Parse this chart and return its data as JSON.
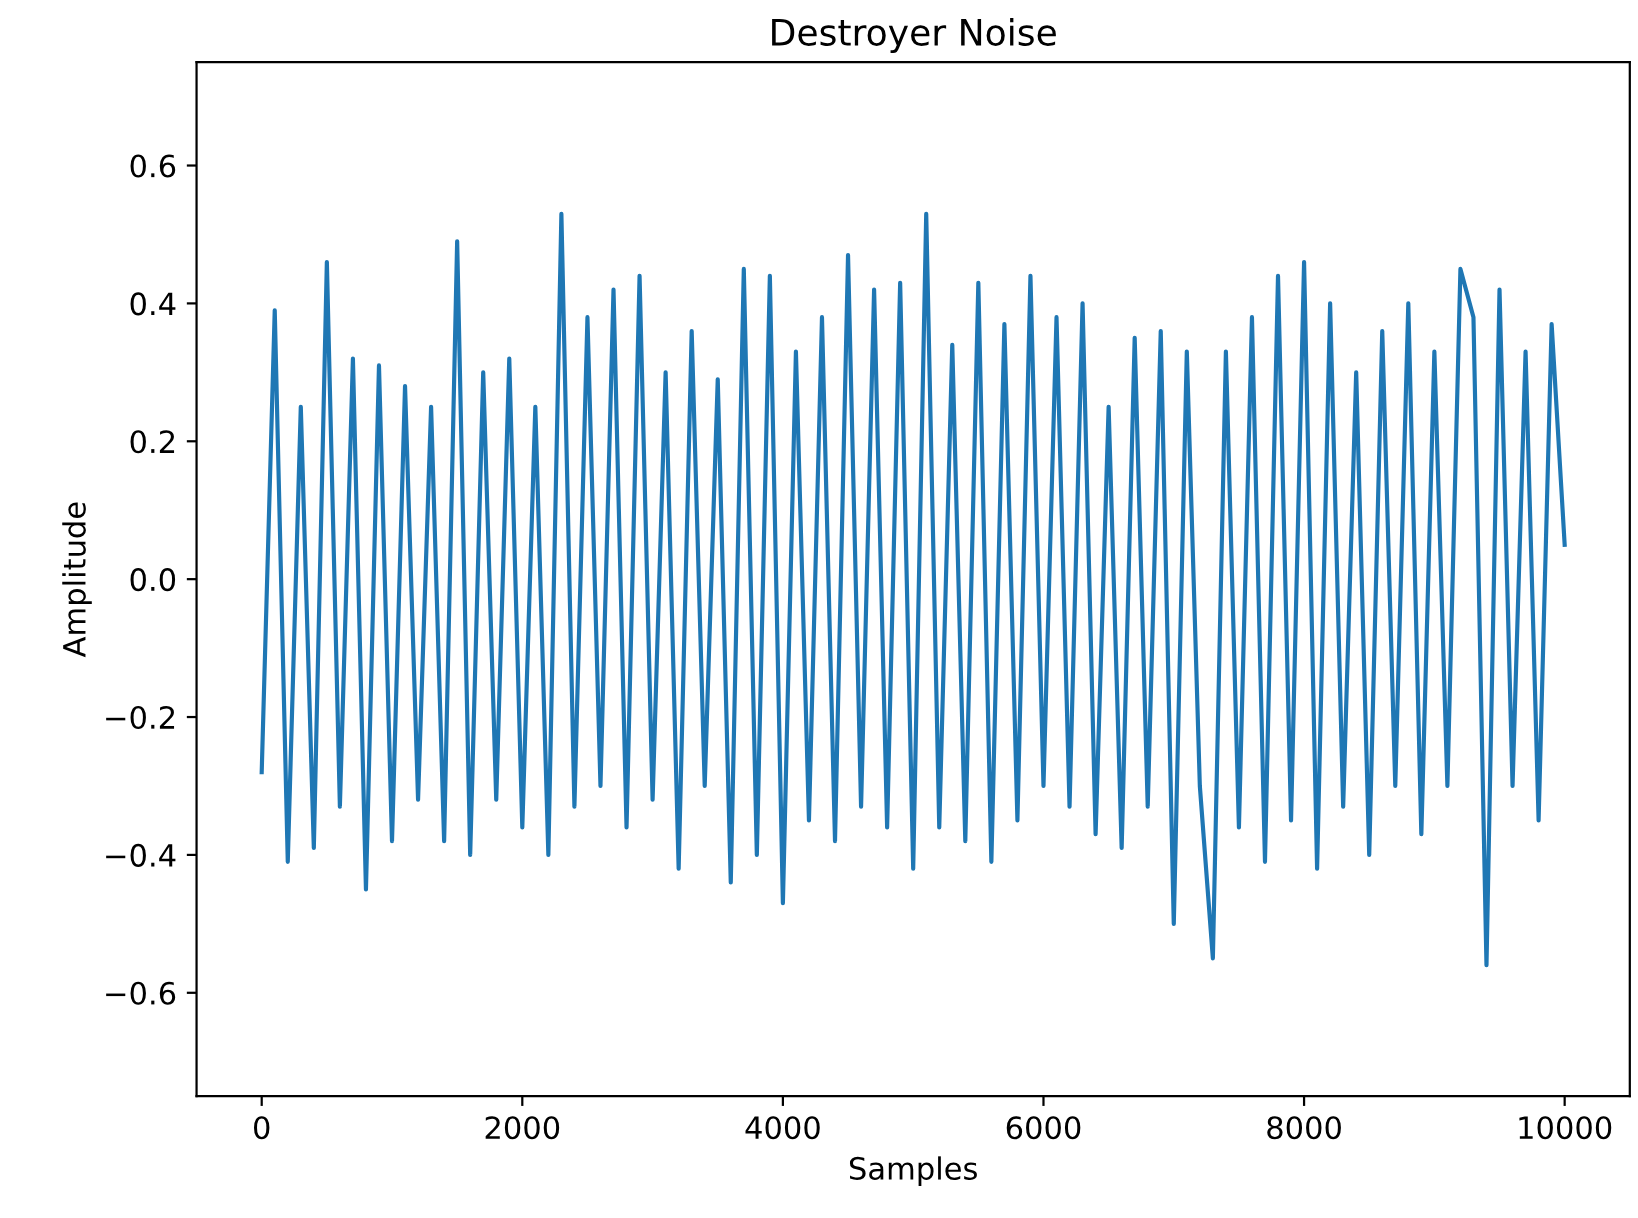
{
  "chart_data": {
    "type": "line",
    "title": "Destroyer Noise",
    "xlabel": "Samples",
    "ylabel": "Amplitude",
    "x": [
      0,
      100,
      200,
      300,
      400,
      500,
      600,
      700,
      800,
      900,
      1000,
      1100,
      1200,
      1300,
      1400,
      1500,
      1600,
      1700,
      1800,
      1900,
      2000,
      2100,
      2200,
      2300,
      2400,
      2500,
      2600,
      2700,
      2800,
      2900,
      3000,
      3100,
      3200,
      3300,
      3400,
      3500,
      3600,
      3700,
      3800,
      3900,
      4000,
      4100,
      4200,
      4300,
      4400,
      4500,
      4600,
      4700,
      4800,
      4900,
      5000,
      5100,
      5200,
      5300,
      5400,
      5500,
      5600,
      5700,
      5800,
      5900,
      6000,
      6100,
      6200,
      6300,
      6400,
      6500,
      6600,
      6700,
      6800,
      6900,
      7000,
      7100,
      7200,
      7300,
      7400,
      7500,
      7600,
      7700,
      7800,
      7900,
      8000,
      8100,
      8200,
      8300,
      8400,
      8500,
      8600,
      8700,
      8800,
      8900,
      9000,
      9100,
      9200,
      9300,
      9400,
      9500,
      9600,
      9700,
      9800,
      9900,
      10000
    ],
    "series": [
      {
        "color": "#1f77b4",
        "values": [
          -0.28,
          0.39,
          -0.41,
          0.25,
          -0.39,
          0.46,
          -0.33,
          0.32,
          -0.45,
          0.31,
          -0.38,
          0.28,
          -0.32,
          0.25,
          -0.38,
          0.49,
          -0.4,
          0.3,
          -0.32,
          0.32,
          -0.36,
          0.25,
          -0.4,
          0.53,
          -0.33,
          0.38,
          -0.3,
          0.42,
          -0.36,
          0.44,
          -0.32,
          0.3,
          -0.42,
          0.36,
          -0.3,
          0.29,
          -0.44,
          0.45,
          -0.4,
          0.44,
          -0.47,
          0.33,
          -0.35,
          0.38,
          -0.38,
          0.47,
          -0.33,
          0.42,
          -0.36,
          0.43,
          -0.42,
          0.53,
          -0.36,
          0.34,
          -0.38,
          0.43,
          -0.41,
          0.37,
          -0.35,
          0.44,
          -0.3,
          0.38,
          -0.33,
          0.4,
          -0.37,
          0.25,
          -0.39,
          0.35,
          -0.33,
          0.36,
          -0.5,
          0.33,
          -0.3,
          -0.55,
          0.33,
          -0.36,
          0.38,
          -0.41,
          0.44,
          -0.35,
          0.46,
          -0.42,
          0.4,
          -0.33,
          0.3,
          -0.4,
          0.36,
          -0.3,
          0.4,
          -0.37,
          0.33,
          -0.3,
          0.45,
          0.38,
          -0.56,
          0.42,
          -0.3,
          0.33,
          -0.35,
          0.37,
          0.05
        ]
      }
    ],
    "xlim": [
      -500,
      10500
    ],
    "xticks": [
      0,
      2000,
      4000,
      6000,
      8000,
      10000
    ],
    "ylim": [
      -0.75,
      0.75
    ],
    "yticks": [
      {
        "value": -0.6,
        "label": "−0.6"
      },
      {
        "value": -0.4,
        "label": "−0.4"
      },
      {
        "value": -0.2,
        "label": "−0.2"
      },
      {
        "value": 0,
        "label": "0.0"
      },
      {
        "value": 0.2,
        "label": "0.2"
      },
      {
        "value": 0.4,
        "label": "0.4"
      },
      {
        "value": 0.6,
        "label": "0.6"
      }
    ],
    "grid": false
  }
}
